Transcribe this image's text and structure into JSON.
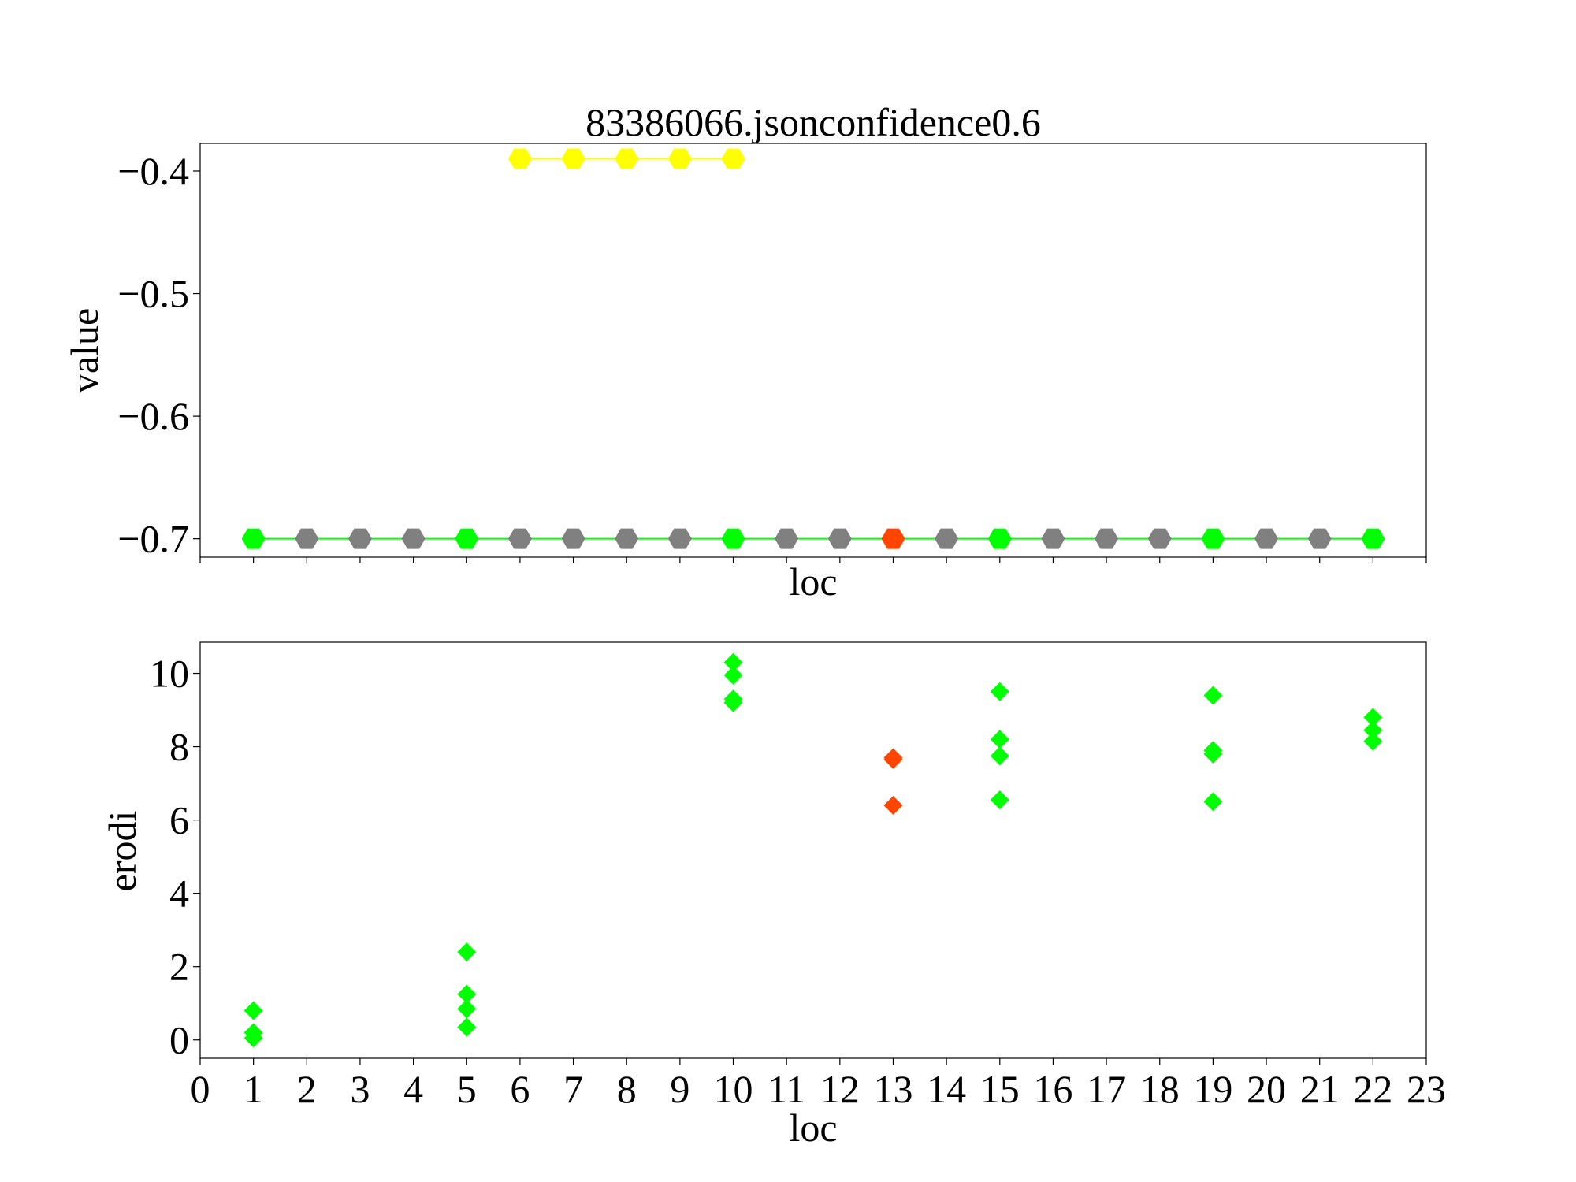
{
  "chart_data": [
    {
      "type": "line",
      "title": "83386066.jsonconfidence0.6",
      "xlabel": "loc",
      "ylabel": "value",
      "xlim": [
        0,
        23
      ],
      "ylim": [
        -0.715,
        -0.3775
      ],
      "yticks": [
        -0.4,
        -0.5,
        -0.6,
        -0.7
      ],
      "ytick_labels": [
        "−0.4",
        "−0.5",
        "−0.6",
        "−0.7"
      ],
      "colors": {
        "green": "#00ff00",
        "gray": "#808080",
        "red": "#ff4500",
        "yellow": "#ffff00"
      },
      "series": [
        {
          "line_color": "#ffff00",
          "points": [
            {
              "x": 6,
              "y": -0.39,
              "color": "#ffff00"
            },
            {
              "x": 7,
              "y": -0.39,
              "color": "#ffff00"
            },
            {
              "x": 8,
              "y": -0.39,
              "color": "#ffff00"
            },
            {
              "x": 9,
              "y": -0.39,
              "color": "#ffff00"
            },
            {
              "x": 10,
              "y": -0.39,
              "color": "#ffff00"
            }
          ]
        },
        {
          "line_color": "#00ff00",
          "points": [
            {
              "x": 1,
              "y": -0.7,
              "color": "#00ff00"
            },
            {
              "x": 2,
              "y": -0.7,
              "color": "#808080"
            },
            {
              "x": 3,
              "y": -0.7,
              "color": "#808080"
            },
            {
              "x": 4,
              "y": -0.7,
              "color": "#808080"
            },
            {
              "x": 5,
              "y": -0.7,
              "color": "#00ff00"
            },
            {
              "x": 6,
              "y": -0.7,
              "color": "#808080"
            },
            {
              "x": 7,
              "y": -0.7,
              "color": "#808080"
            },
            {
              "x": 8,
              "y": -0.7,
              "color": "#808080"
            },
            {
              "x": 9,
              "y": -0.7,
              "color": "#808080"
            },
            {
              "x": 10,
              "y": -0.7,
              "color": "#00ff00"
            },
            {
              "x": 11,
              "y": -0.7,
              "color": "#808080"
            },
            {
              "x": 12,
              "y": -0.7,
              "color": "#808080"
            },
            {
              "x": 13,
              "y": -0.7,
              "color": "#ff4500"
            },
            {
              "x": 14,
              "y": -0.7,
              "color": "#808080"
            },
            {
              "x": 15,
              "y": -0.7,
              "color": "#00ff00"
            },
            {
              "x": 16,
              "y": -0.7,
              "color": "#808080"
            },
            {
              "x": 17,
              "y": -0.7,
              "color": "#808080"
            },
            {
              "x": 18,
              "y": -0.7,
              "color": "#808080"
            },
            {
              "x": 19,
              "y": -0.7,
              "color": "#00ff00"
            },
            {
              "x": 20,
              "y": -0.7,
              "color": "#808080"
            },
            {
              "x": 21,
              "y": -0.7,
              "color": "#808080"
            },
            {
              "x": 22,
              "y": -0.7,
              "color": "#00ff00"
            }
          ]
        }
      ],
      "marker": "hexagon",
      "grid": false
    },
    {
      "type": "scatter",
      "xlabel": "loc",
      "ylabel": "erodi",
      "xlim": [
        0,
        23
      ],
      "ylim": [
        -0.5,
        10.85
      ],
      "xticks": [
        0,
        1,
        2,
        3,
        4,
        5,
        6,
        7,
        8,
        9,
        10,
        11,
        12,
        13,
        14,
        15,
        16,
        17,
        18,
        19,
        20,
        21,
        22,
        23
      ],
      "xtick_labels": [
        "0",
        "1",
        "2",
        "3",
        "4",
        "5",
        "6",
        "7",
        "8",
        "9",
        "10",
        "11",
        "12",
        "13",
        "14",
        "15",
        "16",
        "17",
        "18",
        "19",
        "20",
        "21",
        "22",
        "23"
      ],
      "yticks": [
        0,
        2,
        4,
        6,
        8,
        10
      ],
      "ytick_labels": [
        "0",
        "2",
        "4",
        "6",
        "8",
        "10"
      ],
      "marker": "diamond",
      "grid": false,
      "points": [
        {
          "x": 1,
          "y": 0.8,
          "color": "#00ff00"
        },
        {
          "x": 1,
          "y": 0.2,
          "color": "#00ff00"
        },
        {
          "x": 1,
          "y": 0.05,
          "color": "#00ff00"
        },
        {
          "x": 5,
          "y": 2.4,
          "color": "#00ff00"
        },
        {
          "x": 5,
          "y": 1.25,
          "color": "#00ff00"
        },
        {
          "x": 5,
          "y": 0.85,
          "color": "#00ff00"
        },
        {
          "x": 5,
          "y": 0.35,
          "color": "#00ff00"
        },
        {
          "x": 10,
          "y": 10.3,
          "color": "#00ff00"
        },
        {
          "x": 10,
          "y": 9.95,
          "color": "#00ff00"
        },
        {
          "x": 10,
          "y": 9.3,
          "color": "#00ff00"
        },
        {
          "x": 10,
          "y": 9.2,
          "color": "#00ff00"
        },
        {
          "x": 13,
          "y": 7.7,
          "color": "#ff4500"
        },
        {
          "x": 13,
          "y": 7.65,
          "color": "#ff4500"
        },
        {
          "x": 13,
          "y": 6.4,
          "color": "#ff4500"
        },
        {
          "x": 15,
          "y": 9.5,
          "color": "#00ff00"
        },
        {
          "x": 15,
          "y": 8.2,
          "color": "#00ff00"
        },
        {
          "x": 15,
          "y": 7.75,
          "color": "#00ff00"
        },
        {
          "x": 15,
          "y": 6.55,
          "color": "#00ff00"
        },
        {
          "x": 19,
          "y": 9.4,
          "color": "#00ff00"
        },
        {
          "x": 19,
          "y": 7.9,
          "color": "#00ff00"
        },
        {
          "x": 19,
          "y": 7.8,
          "color": "#00ff00"
        },
        {
          "x": 19,
          "y": 6.5,
          "color": "#00ff00"
        },
        {
          "x": 22,
          "y": 8.8,
          "color": "#00ff00"
        },
        {
          "x": 22,
          "y": 8.45,
          "color": "#00ff00"
        },
        {
          "x": 22,
          "y": 8.15,
          "color": "#00ff00"
        }
      ]
    }
  ]
}
